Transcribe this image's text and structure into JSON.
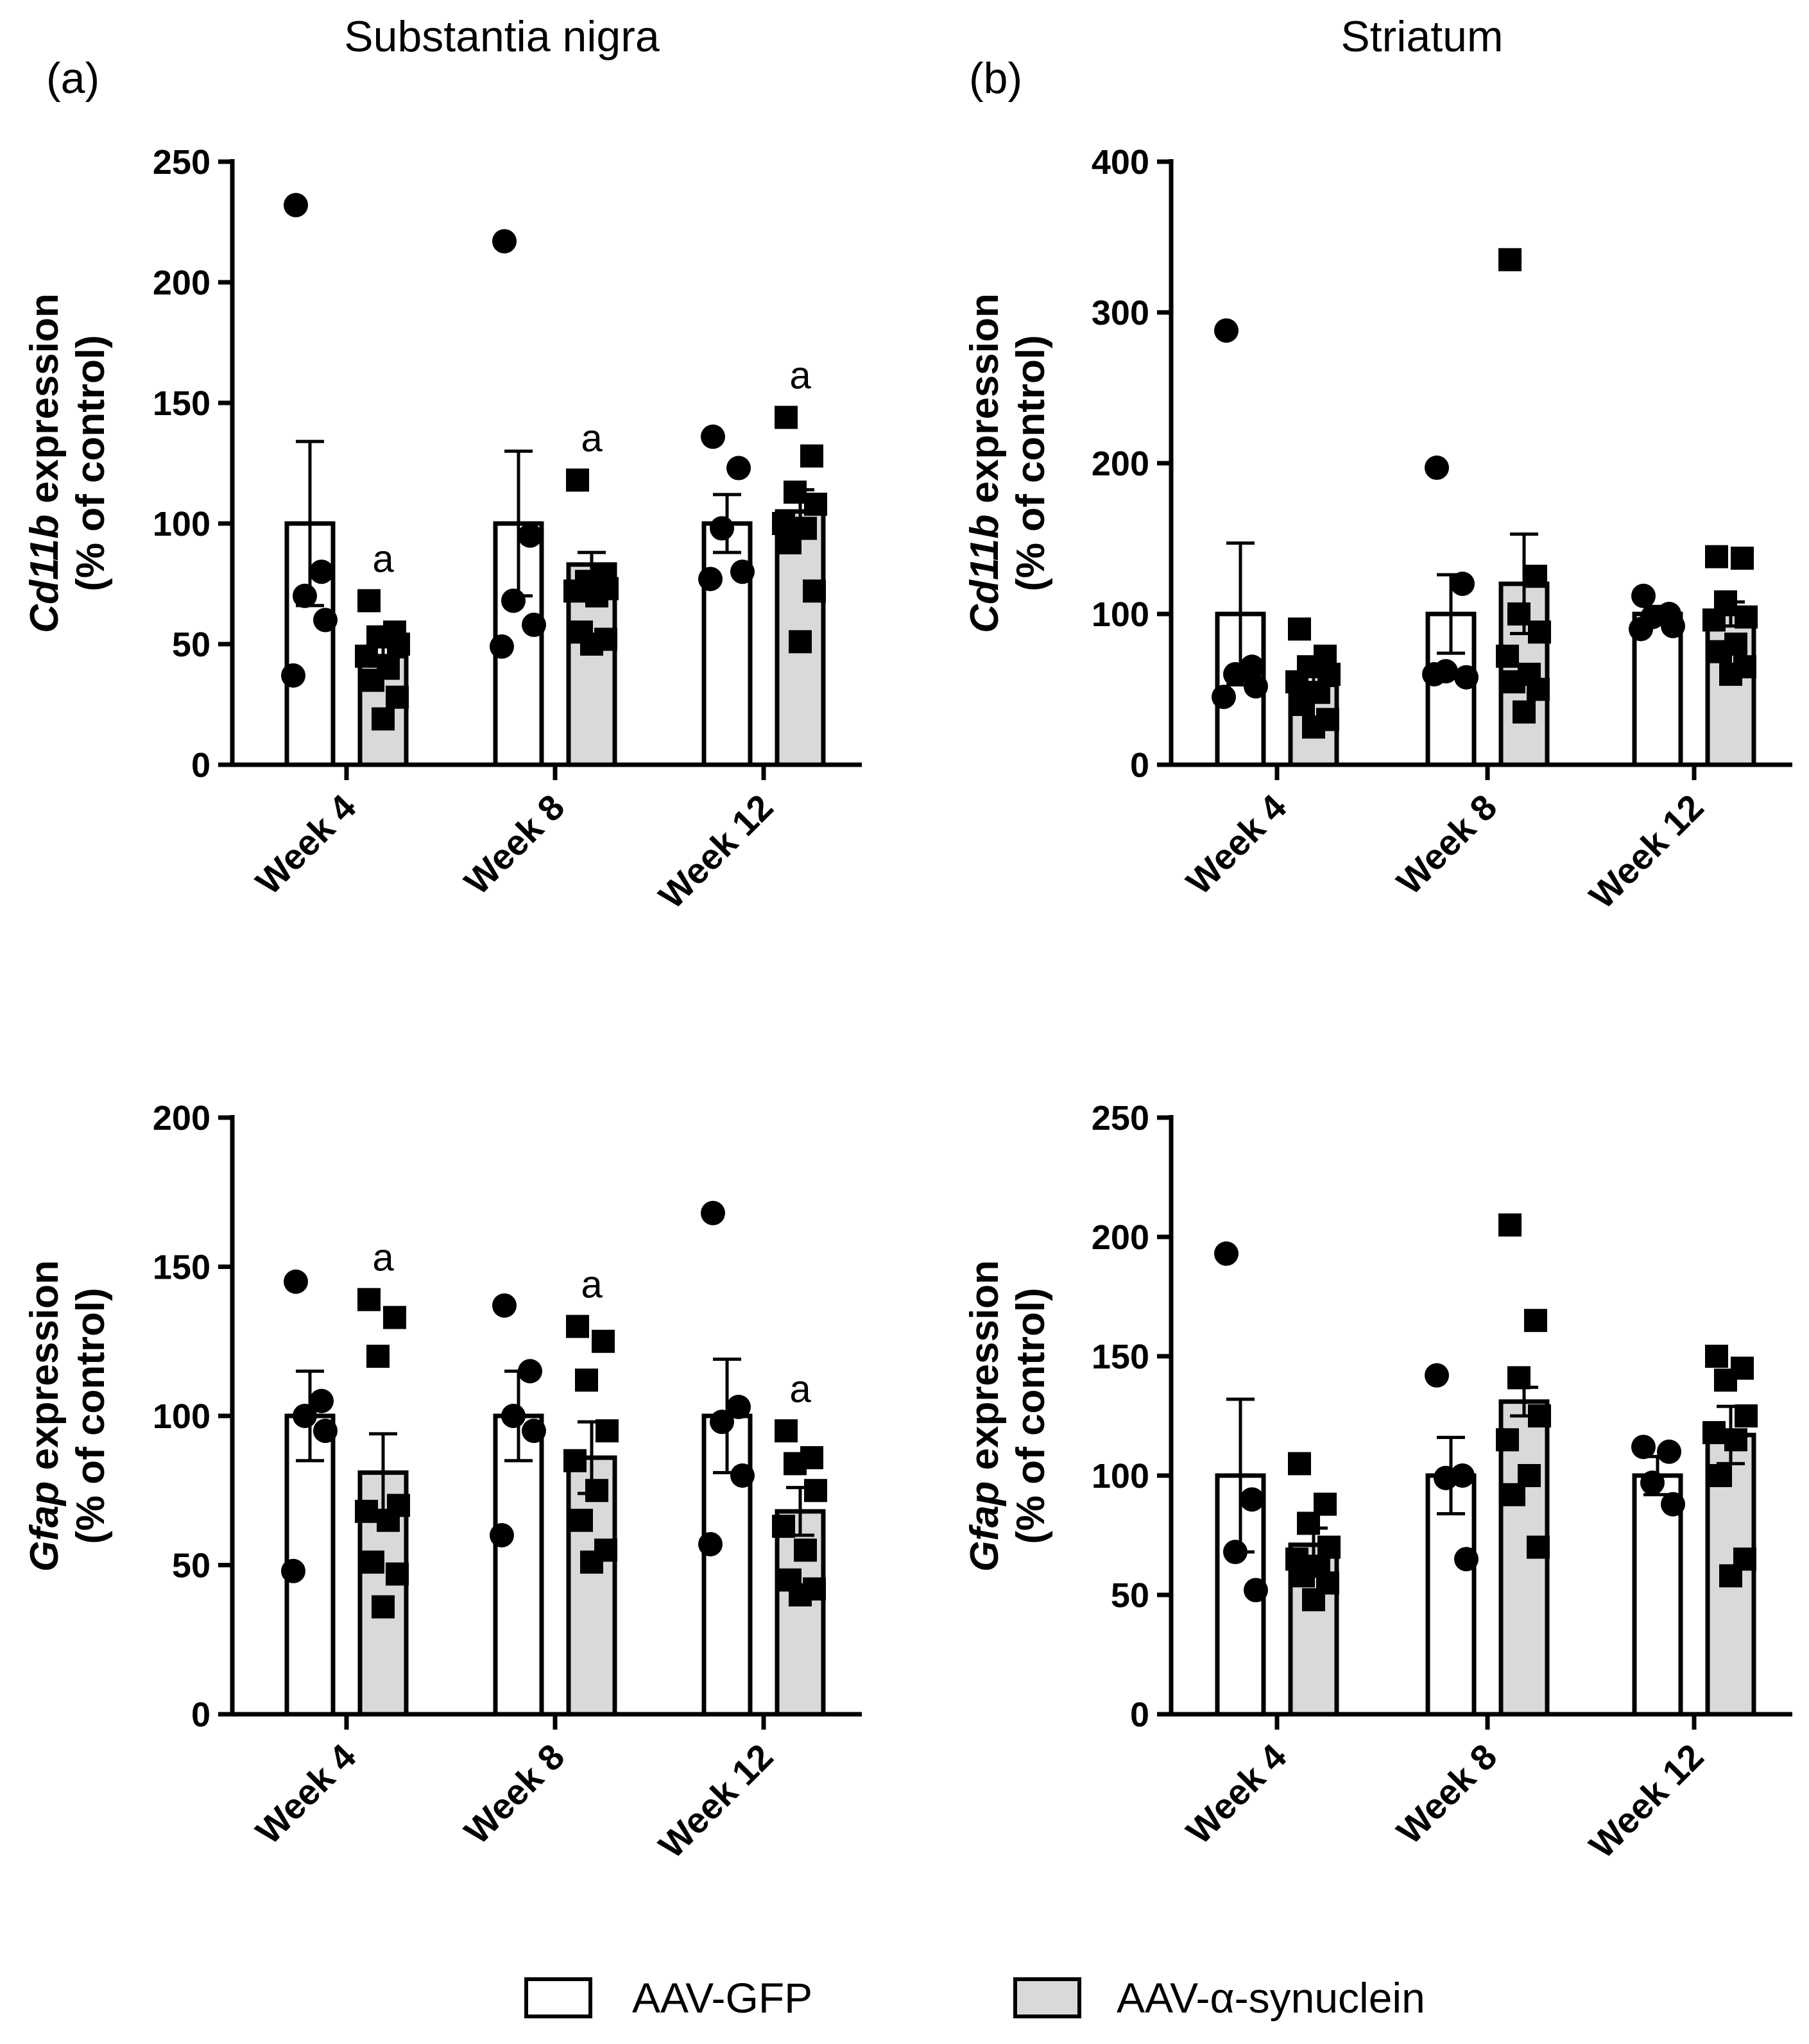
{
  "columns": [
    {
      "label": "(a)",
      "title": "Substantia nigra"
    },
    {
      "label": "(b)",
      "title": "Striatum"
    }
  ],
  "legend": [
    {
      "name": "AAV-GFP",
      "fill": "#ffffff"
    },
    {
      "name": "AAV-α-synuclein",
      "fill": "#d9d9d9"
    }
  ],
  "chart_data": [
    {
      "type": "bar",
      "region": "Substantia nigra",
      "gene": "Cd11b",
      "ylabel_rest": " expression",
      "ylabel_line2": "(% of control)",
      "categories": [
        "Week 4",
        "Week 8",
        "Week 12"
      ],
      "ylim": [
        0,
        250
      ],
      "yticks": [
        "0",
        "50",
        "100",
        "150",
        "200",
        "250"
      ],
      "series": [
        {
          "name": "AAV-GFP",
          "values": [
            100,
            100,
            100
          ],
          "sem": [
            34,
            30,
            12
          ],
          "points": [
            [
              232,
              80,
              70,
              60,
              37
            ],
            [
              217,
              95,
              68,
              58,
              49
            ],
            [
              136,
              123,
              98,
              80,
              77
            ]
          ]
        },
        {
          "name": "AAV-α-synuclein",
          "values": [
            45,
            83,
            105
          ],
          "sem": [
            7,
            5,
            9
          ],
          "points": [
            [
              68,
              55,
              53,
              50,
              45,
              40,
              35,
              28,
              19
            ],
            [
              118,
              78,
              76,
              73,
              72,
              70,
              55,
              52,
              50
            ],
            [
              144,
              128,
              113,
              108,
              100,
              98,
              92,
              72,
              51
            ]
          ]
        }
      ],
      "annotations": [
        "",
        "a",
        "",
        "a",
        "",
        "a"
      ]
    },
    {
      "type": "bar",
      "region": "Striatum",
      "gene": "Cd11b",
      "ylabel_rest": " expression",
      "ylabel_line2": "(% of control)",
      "categories": [
        "Week 4",
        "Week 8",
        "Week 12"
      ],
      "ylim": [
        0,
        400
      ],
      "yticks": [
        "0",
        "100",
        "200",
        "300",
        "400"
      ],
      "series": [
        {
          "name": "AAV-GFP",
          "values": [
            100,
            100,
            100
          ],
          "sem": [
            47,
            26,
            5
          ],
          "points": [
            [
              288,
              65,
              60,
              52,
              45
            ],
            [
              197,
              120,
              62,
              58,
              60
            ],
            [
              112,
              100,
              98,
              92,
              90
            ]
          ]
        },
        {
          "name": "AAV-α-synuclein",
          "values": [
            53,
            120,
            100
          ],
          "sem": [
            9,
            33,
            8
          ],
          "points": [
            [
              90,
              72,
              65,
              60,
              55,
              48,
              40,
              30,
              25
            ],
            [
              335,
              125,
              100,
              88,
              72,
              60,
              55,
              50,
              35
            ],
            [
              138,
              137,
              108,
              98,
              96,
              80,
              75,
              65,
              60
            ]
          ]
        }
      ],
      "annotations": [
        "",
        "",
        "",
        "",
        "",
        ""
      ]
    },
    {
      "type": "bar",
      "region": "Substantia nigra",
      "gene": "Gfap",
      "ylabel_rest": " expression",
      "ylabel_line2": "(% of control)",
      "categories": [
        "Week 4",
        "Week 8",
        "Week 12"
      ],
      "ylim": [
        0,
        200
      ],
      "yticks": [
        "0",
        "50",
        "100",
        "150",
        "200"
      ],
      "series": [
        {
          "name": "AAV-GFP",
          "values": [
            100,
            100,
            100
          ],
          "sem": [
            15,
            15,
            19
          ],
          "points": [
            [
              145,
              105,
              100,
              95,
              48
            ],
            [
              137,
              115,
              100,
              95,
              60
            ],
            [
              168,
              103,
              98,
              80,
              57
            ]
          ]
        },
        {
          "name": "AAV-α-synuclein",
          "values": [
            81,
            86,
            68
          ],
          "sem": [
            13,
            12,
            8
          ],
          "points": [
            [
              139,
              133,
              120,
              70,
              68,
              65,
              51,
              47,
              36
            ],
            [
              130,
              125,
              112,
              95,
              85,
              75,
              65,
              55,
              51
            ],
            [
              95,
              86,
              84,
              75,
              63,
              55,
              45,
              42,
              40
            ]
          ]
        }
      ],
      "annotations": [
        "",
        "a",
        "",
        "a",
        "",
        "a"
      ]
    },
    {
      "type": "bar",
      "region": "Striatum",
      "gene": "Gfap",
      "ylabel_rest": " expression",
      "ylabel_line2": "(% of control)",
      "categories": [
        "Week 4",
        "Week 8",
        "Week 12"
      ],
      "ylim": [
        0,
        250
      ],
      "yticks": [
        "0",
        "50",
        "100",
        "150",
        "200",
        "250"
      ],
      "series": [
        {
          "name": "AAV-GFP",
          "values": [
            100,
            100,
            100
          ],
          "sem": [
            32,
            16,
            8
          ],
          "points": [
            [
              193,
              90,
              68,
              52
            ],
            [
              142,
              100,
              99,
              65
            ],
            [
              112,
              110,
              97,
              88
            ]
          ]
        },
        {
          "name": "AAV-α-synuclein",
          "values": [
            71,
            131,
            117
          ],
          "sem": [
            7,
            6,
            12
          ],
          "points": [
            [
              105,
              88,
              80,
              70,
              65,
              62,
              58,
              55,
              48
            ],
            [
              205,
              165,
              141,
              125,
              115,
              100,
              92,
              70
            ],
            [
              150,
              145,
              140,
              125,
              118,
              115,
              100,
              65,
              58
            ]
          ]
        }
      ],
      "annotations": [
        "",
        "",
        "",
        "",
        "",
        ""
      ]
    }
  ]
}
